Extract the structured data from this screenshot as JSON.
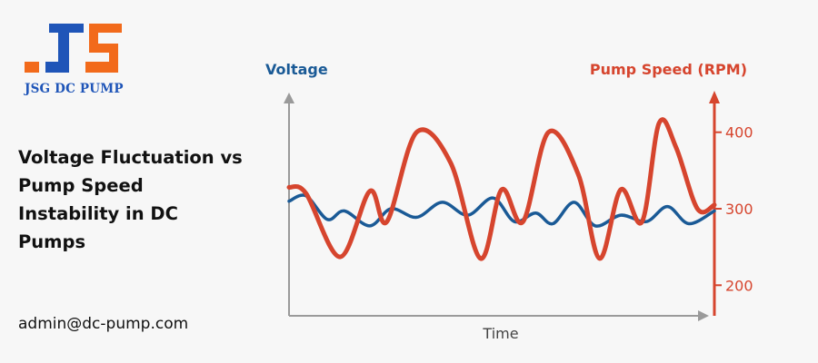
{
  "brand": {
    "logo_text": "JSG DC PUMP",
    "colors": {
      "blue": "#1f55b8",
      "orange": "#f26a1b"
    }
  },
  "title": "Voltage Fluctuation vs Pump Speed Instability in DC Pumps",
  "email": "admin@dc-pump.com",
  "chart_data": {
    "type": "line",
    "ylabel_left": "Voltage",
    "ylabel_right": "Pump Speed (RPM)",
    "xlabel": "Time",
    "right_axis": {
      "ticks": [
        200,
        300,
        400
      ],
      "ylim": [
        160,
        440
      ]
    },
    "grid": false,
    "series": [
      {
        "color": "#1a5a96",
        "axis": "left",
        "x": [
          0,
          0.04,
          0.09,
          0.13,
          0.19,
          0.24,
          0.3,
          0.36,
          0.42,
          0.48,
          0.53,
          0.58,
          0.62,
          0.67,
          0.72,
          0.78,
          0.84,
          0.89,
          0.94,
          1.0
        ],
        "values": [
          0.535,
          0.56,
          0.45,
          0.49,
          0.42,
          0.5,
          0.46,
          0.53,
          0.47,
          0.55,
          0.44,
          0.48,
          0.43,
          0.53,
          0.42,
          0.47,
          0.44,
          0.51,
          0.43,
          0.49
        ]
      },
      {
        "color": "#d6452e",
        "axis": "right",
        "x": [
          0,
          0.04,
          0.12,
          0.19,
          0.23,
          0.3,
          0.38,
          0.45,
          0.5,
          0.55,
          0.61,
          0.68,
          0.73,
          0.78,
          0.83,
          0.87,
          0.91,
          0.96,
          1.0
        ],
        "values": [
          328,
          320,
          237,
          323,
          283,
          400,
          360,
          235,
          325,
          283,
          400,
          345,
          235,
          325,
          283,
          412,
          380,
          300,
          305
        ]
      }
    ]
  }
}
